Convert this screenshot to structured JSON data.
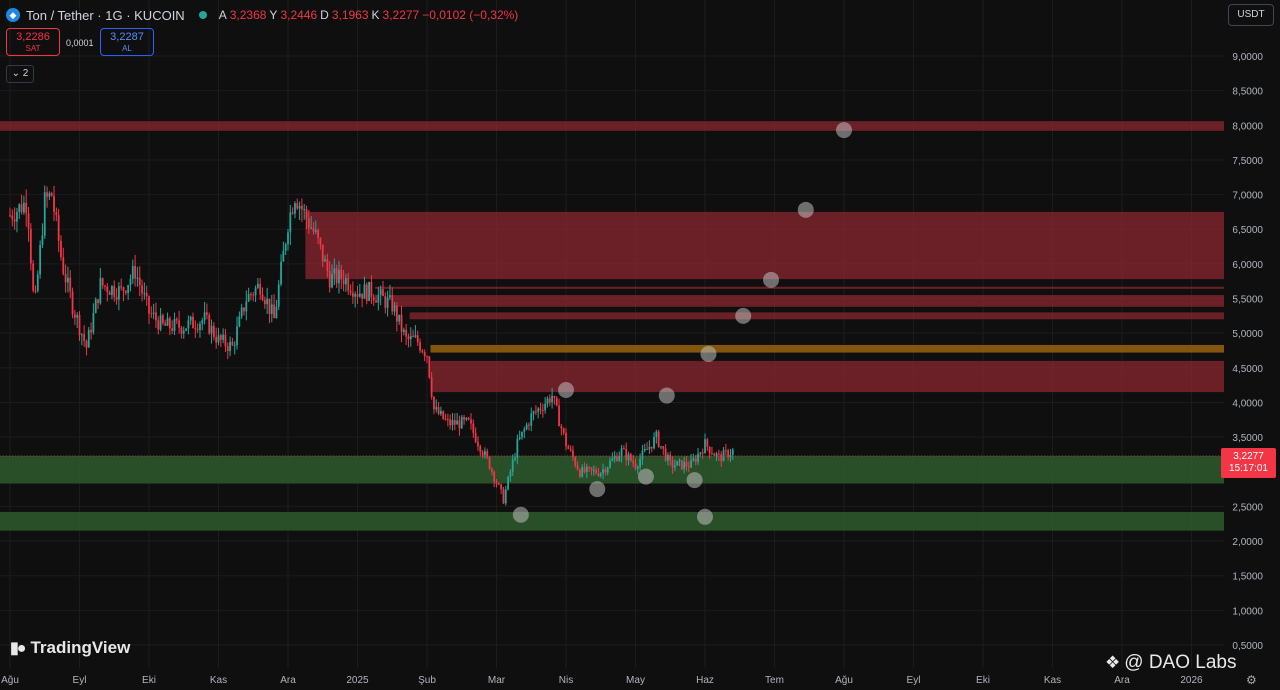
{
  "header": {
    "symbol": "Ton / Tether · 1G · KUCOIN",
    "ohlc": [
      {
        "k": "A",
        "v": "3,2368"
      },
      {
        "k": "Y",
        "v": "3,2446"
      },
      {
        "k": "D",
        "v": "3,1963"
      },
      {
        "k": "K",
        "v": "3,2277"
      },
      {
        "k": "",
        "v": "−0,0102 (−0,32%)"
      }
    ]
  },
  "trade": {
    "sell_price": "3,2286",
    "sell_label": "SAT",
    "spread": "0,0001",
    "buy_price": "3,2287",
    "buy_label": "AL"
  },
  "layers_count": "2",
  "currency": "USDT",
  "current_price": {
    "price": "3,2277",
    "countdown": "15:17:01"
  },
  "watermark": "TradingView",
  "credit": "@ DAO Labs",
  "colors": {
    "up": "#26a69a",
    "down": "#f23645",
    "resistance": "#8b2630",
    "support": "#2d5a2d",
    "key_level": "#8a5a10"
  },
  "chart_data": {
    "type": "candlestick",
    "y_ticks": [
      "9,0000",
      "8,5000",
      "8,0000",
      "7,5000",
      "7,0000",
      "6,5000",
      "6,0000",
      "5,5000",
      "5,0000",
      "4,5000",
      "4,0000",
      "3,5000",
      "3,0000",
      "2,5000",
      "2,0000",
      "1,5000",
      "1,0000",
      "0,5000"
    ],
    "y_tick_values": [
      9,
      8.5,
      8,
      7.5,
      7,
      6.5,
      6,
      5.5,
      5,
      4.5,
      4,
      3.5,
      3,
      2.5,
      2,
      1.5,
      1,
      0.5
    ],
    "x_ticks": [
      "Ağu",
      "Eyl",
      "Eki",
      "Kas",
      "Ara",
      "2025",
      "Şub",
      "Mar",
      "Nis",
      "May",
      "Haz",
      "Tem",
      "Ağu",
      "Eyl",
      "Eki",
      "Kas",
      "Ara",
      "2026"
    ],
    "x_tick_months": [
      0,
      1,
      2,
      3,
      4,
      5,
      6,
      7,
      8,
      9,
      10,
      11,
      12,
      13,
      14,
      15,
      16,
      17
    ],
    "price_path": [
      [
        0,
        6.7
      ],
      [
        0.25,
        6.9
      ],
      [
        0.35,
        5.3
      ],
      [
        0.5,
        6.9
      ],
      [
        0.6,
        7.0
      ],
      [
        0.75,
        6.0
      ],
      [
        0.9,
        5.4
      ],
      [
        1.1,
        4.8
      ],
      [
        1.3,
        5.7
      ],
      [
        1.6,
        5.6
      ],
      [
        1.8,
        5.9
      ],
      [
        2.0,
        5.3
      ],
      [
        2.2,
        5.1
      ],
      [
        2.5,
        5.1
      ],
      [
        2.8,
        5.2
      ],
      [
        3.0,
        4.9
      ],
      [
        3.2,
        4.8
      ],
      [
        3.4,
        5.5
      ],
      [
        3.6,
        5.7
      ],
      [
        3.8,
        5.2
      ],
      [
        4.0,
        6.6
      ],
      [
        4.1,
        7.0
      ],
      [
        4.2,
        6.8
      ],
      [
        4.4,
        6.4
      ],
      [
        4.6,
        5.8
      ],
      [
        4.8,
        5.8
      ],
      [
        5.0,
        5.6
      ],
      [
        5.2,
        5.6
      ],
      [
        5.5,
        5.4
      ],
      [
        5.7,
        4.9
      ],
      [
        5.85,
        4.9
      ],
      [
        6.0,
        4.7
      ],
      [
        6.1,
        3.9
      ],
      [
        6.3,
        3.7
      ],
      [
        6.6,
        3.7
      ],
      [
        6.9,
        3.1
      ],
      [
        7.1,
        2.6
      ],
      [
        7.3,
        3.4
      ],
      [
        7.5,
        3.8
      ],
      [
        7.8,
        4.1
      ],
      [
        8.0,
        3.4
      ],
      [
        8.2,
        3.0
      ],
      [
        8.5,
        3.0
      ],
      [
        8.8,
        3.3
      ],
      [
        9.0,
        3.1
      ],
      [
        9.3,
        3.5
      ],
      [
        9.5,
        3.1
      ],
      [
        9.8,
        3.1
      ],
      [
        10.0,
        3.4
      ],
      [
        10.2,
        3.2
      ],
      [
        10.4,
        3.3
      ]
    ],
    "zones": [
      {
        "type": "resistance",
        "low": 7.92,
        "high": 8.06
      },
      {
        "type": "resistance",
        "low": 5.78,
        "high": 6.75
      },
      {
        "type": "resistance",
        "low": 5.64,
        "high": 5.67
      },
      {
        "type": "resistance",
        "low": 5.38,
        "high": 5.55
      },
      {
        "type": "resistance",
        "low": 5.2,
        "high": 5.3
      },
      {
        "type": "key_level",
        "low": 4.72,
        "high": 4.83
      },
      {
        "type": "resistance",
        "low": 4.15,
        "high": 4.6
      },
      {
        "type": "support",
        "low": 2.83,
        "high": 3.23
      },
      {
        "type": "support",
        "low": 2.15,
        "high": 2.42
      }
    ],
    "markers": [
      [
        7.35,
        2.38
      ],
      [
        8.0,
        4.18
      ],
      [
        8.45,
        2.75
      ],
      [
        9.15,
        2.93
      ],
      [
        9.45,
        4.1
      ],
      [
        9.85,
        2.88
      ],
      [
        10.0,
        2.35
      ],
      [
        10.05,
        4.7
      ],
      [
        10.55,
        5.25
      ],
      [
        10.95,
        5.77
      ],
      [
        11.45,
        6.78
      ],
      [
        12.0,
        7.93
      ]
    ],
    "last_price": 3.2277
  }
}
